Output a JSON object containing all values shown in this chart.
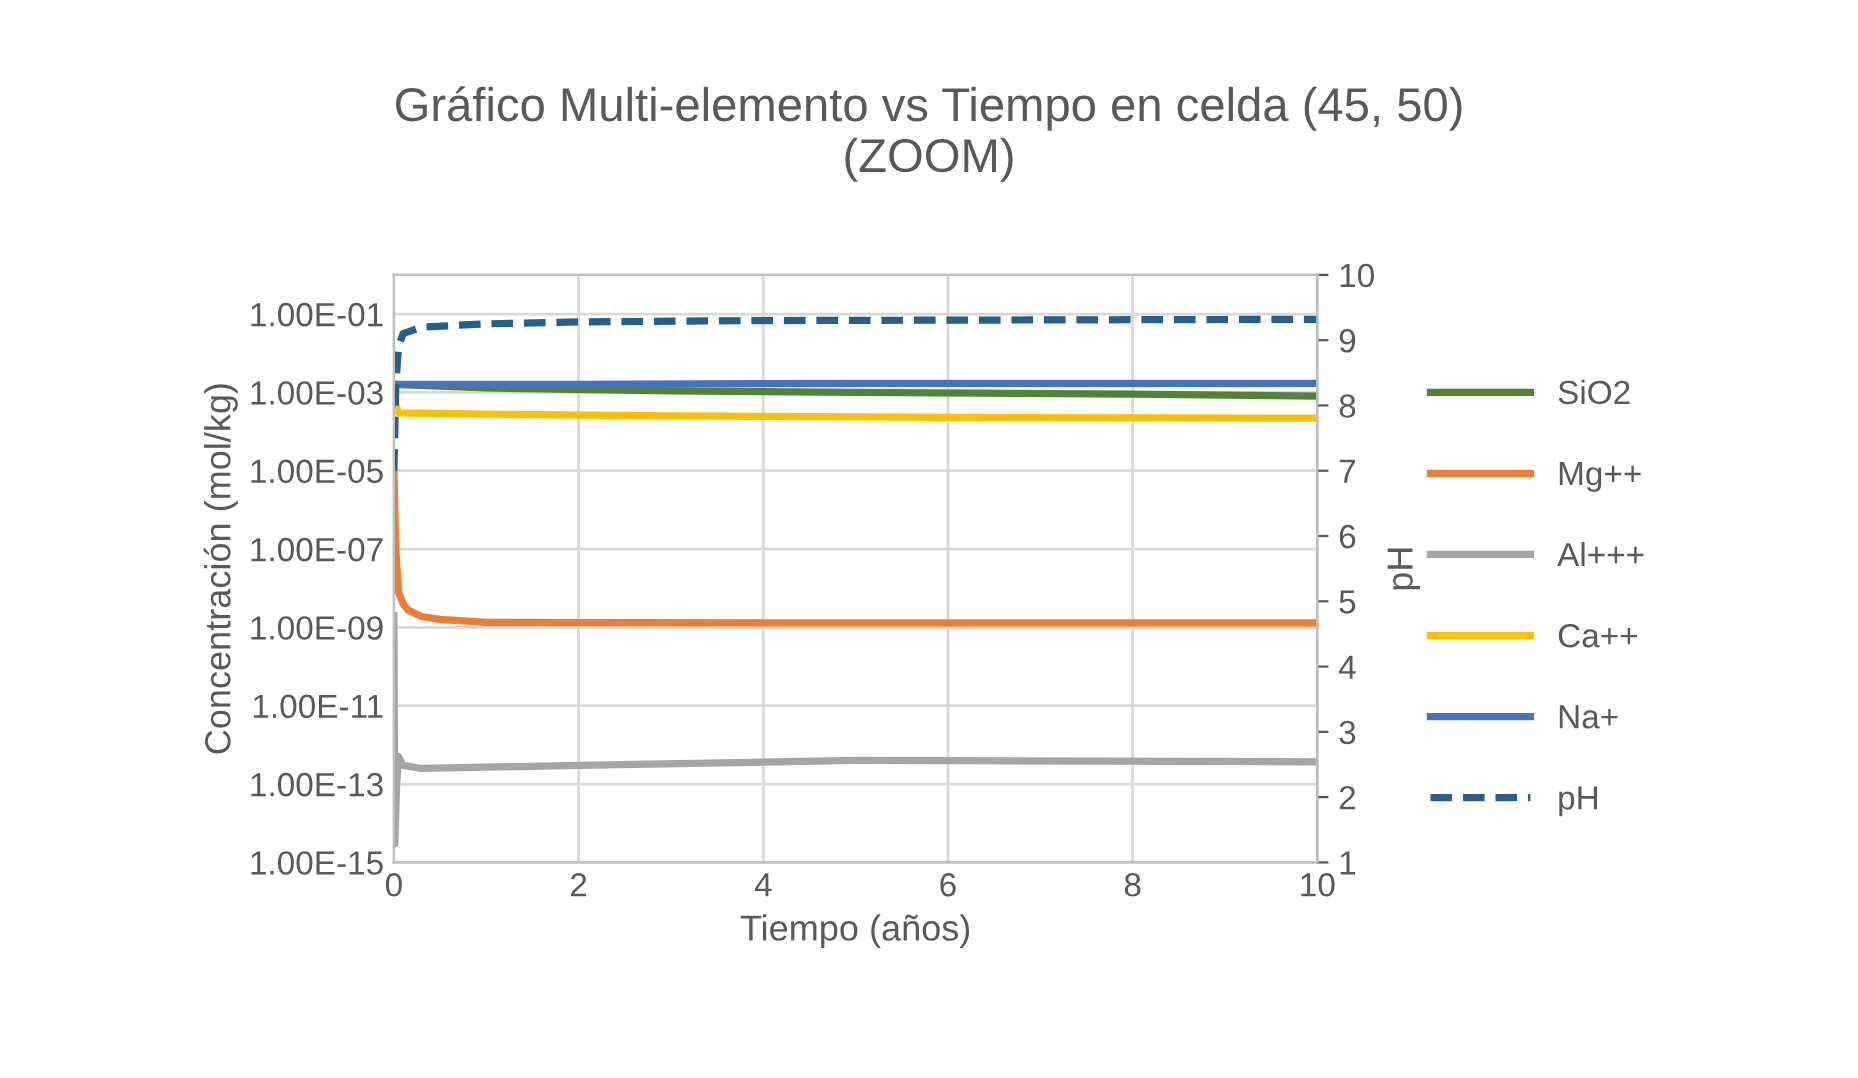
{
  "chart_data": {
    "type": "line",
    "title": "Gráfico Multi-elemento vs Tiempo en celda (45, 50)\n(ZOOM)",
    "xlabel": "Tiempo (años)",
    "ylabel": "Concentración (mol/kg)",
    "y2label": "pH",
    "log": "y",
    "grid": true,
    "legend": "right",
    "line_style": "solid",
    "marker": "none",
    "xlim": [
      0,
      10
    ],
    "xticks": [
      0,
      2,
      4,
      6,
      8,
      10
    ],
    "ylim": [
      1e-15,
      1
    ],
    "yticks": [
      {
        "value": 1e-15,
        "label": "1.00E-15"
      },
      {
        "value": 1e-13,
        "label": "1.00E-13"
      },
      {
        "value": 1e-11,
        "label": "1.00E-11"
      },
      {
        "value": 1e-09,
        "label": "1.00E-09"
      },
      {
        "value": 1e-07,
        "label": "1.00E-07"
      },
      {
        "value": 1e-05,
        "label": "1.00E-05"
      },
      {
        "value": 0.001,
        "label": "1.00E-03"
      },
      {
        "value": 0.1,
        "label": "1.00E-01"
      }
    ],
    "y2lim": [
      1,
      10
    ],
    "y2ticks": [
      1,
      2,
      3,
      4,
      5,
      6,
      7,
      8,
      9,
      10
    ],
    "series": [
      {
        "name": "SiO2",
        "color": "#548235",
        "x": [
          0,
          1,
          3,
          5,
          8,
          10
        ],
        "values": [
          0.0016,
          0.0013,
          0.0011,
          0.001,
          0.0009,
          0.0008
        ]
      },
      {
        "name": "Mg++",
        "color": "#ed7d31",
        "x": [
          0,
          0.02,
          0.05,
          0.1,
          0.15,
          0.3,
          0.5,
          1,
          5,
          10
        ],
        "values": [
          1e-05,
          1e-07,
          8e-09,
          4e-09,
          2.8e-09,
          1.9e-09,
          1.6e-09,
          1.35e-09,
          1.3e-09,
          1.3e-09
        ]
      },
      {
        "name": "Al+++",
        "color": "#a5a5a5",
        "x": [
          0,
          0.01,
          0.03,
          0.05,
          0.1,
          0.3,
          2,
          5,
          10
        ],
        "values": [
          2e-09,
          3e-15,
          1e-13,
          5e-13,
          3e-13,
          2.5e-13,
          3e-13,
          4e-13,
          3.7e-13
        ]
      },
      {
        "name": "Ca++",
        "color": "#ffc000",
        "x": [
          0,
          0.05,
          1,
          3,
          6,
          10
        ],
        "values": [
          0.0007,
          0.0003,
          0.00028,
          0.00025,
          0.00023,
          0.00022
        ]
      },
      {
        "name": "Na+",
        "color": "#4472c4",
        "x": [
          0,
          2,
          5,
          10
        ],
        "values": [
          0.0016,
          0.0016,
          0.0017,
          0.0017
        ]
      },
      {
        "name": "pH",
        "color": "#255e91",
        "axis": "y2",
        "line_style": "dashed",
        "x": [
          0,
          0.02,
          0.05,
          0.1,
          0.3,
          1,
          2,
          4,
          7,
          10
        ],
        "values": [
          7.0,
          8.3,
          8.9,
          9.1,
          9.2,
          9.25,
          9.28,
          9.3,
          9.31,
          9.32
        ]
      }
    ]
  }
}
